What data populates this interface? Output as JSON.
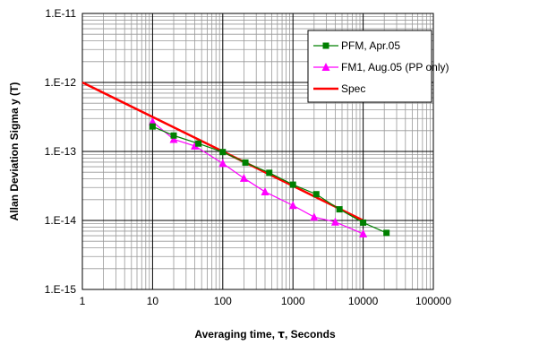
{
  "chart_data": {
    "type": "line",
    "x_scale": "log",
    "y_scale": "log",
    "xlabel_prefix": "Averaging time, ",
    "xlabel_symbol": "τ",
    "xlabel_suffix": ", Seconds",
    "ylabel": "Allan Deviation Sigma y (T)",
    "xlim": [
      1,
      100000
    ],
    "ylim": [
      1e-15,
      1e-11
    ],
    "x_tick_values": [
      1,
      10,
      100,
      1000,
      10000,
      100000
    ],
    "x_tick_labels": [
      "1",
      "10",
      "100",
      "1000",
      "10000",
      "100000"
    ],
    "y_tick_values": [
      1e-15,
      1e-14,
      1e-13,
      1e-12,
      1e-11
    ],
    "y_tick_labels": [
      "1.E-15",
      "1.E-14",
      "1.E-13",
      "1.E-12",
      "1.E-11"
    ],
    "grid": true,
    "legend_position": "top-right",
    "series": [
      {
        "name": "PFM, Apr.05",
        "color": "#008000",
        "marker": "square",
        "x": [
          10,
          20,
          45,
          100,
          210,
          460,
          1000,
          2150,
          4600,
          10000,
          21500
        ],
        "y": [
          2.3e-13,
          1.7e-13,
          1.3e-13,
          9.8e-14,
          6.9e-14,
          4.9e-14,
          3.3e-14,
          2.4e-14,
          1.45e-14,
          9.3e-15,
          6.6e-15
        ]
      },
      {
        "name": "FM1, Aug.05 (PP only)",
        "color": "#ff00ff",
        "marker": "triangle",
        "x": [
          10,
          20,
          40,
          100,
          200,
          400,
          1000,
          2000,
          4000,
          10000
        ],
        "y": [
          2.7e-13,
          1.5e-13,
          1.2e-13,
          6.7e-14,
          4.1e-14,
          2.6e-14,
          1.65e-14,
          1.12e-14,
          9.5e-15,
          6.4e-15
        ]
      },
      {
        "name": "Spec",
        "color": "#ff0000",
        "marker": "none",
        "x": [
          1,
          10000
        ],
        "y": [
          1e-12,
          1e-14
        ]
      }
    ]
  }
}
